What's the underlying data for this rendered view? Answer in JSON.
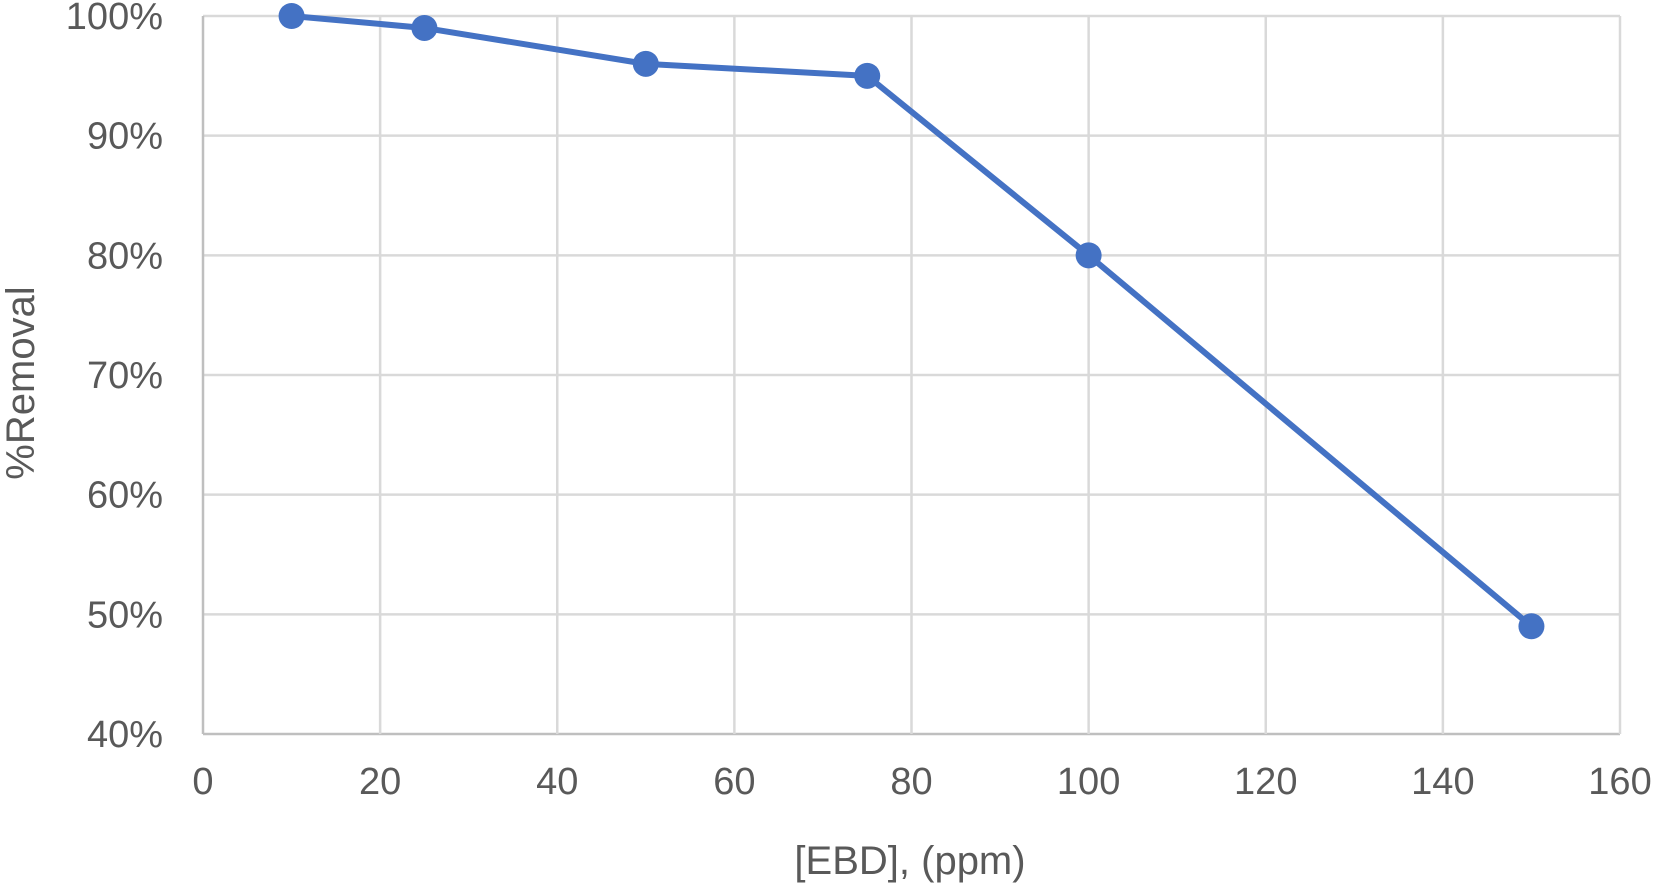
{
  "chart_data": {
    "type": "line",
    "xlabel": "[EBD], (ppm)",
    "ylabel": "%Removal",
    "xlim": [
      0,
      160
    ],
    "ylim": [
      0.4,
      1.0
    ],
    "x_ticks": [
      0,
      20,
      40,
      60,
      80,
      100,
      120,
      140,
      160
    ],
    "y_ticks": [
      0.4,
      0.5,
      0.6,
      0.7,
      0.8,
      0.9,
      1.0
    ],
    "y_tick_labels": [
      "40%",
      "50%",
      "60%",
      "70%",
      "80%",
      "90%",
      "100%"
    ],
    "grid": true,
    "series": [
      {
        "color": "#4472c4",
        "marker": "circle",
        "x": [
          10,
          25,
          50,
          75,
          100,
          150
        ],
        "y": [
          1.0,
          0.99,
          0.96,
          0.95,
          0.8,
          0.49
        ]
      }
    ]
  }
}
